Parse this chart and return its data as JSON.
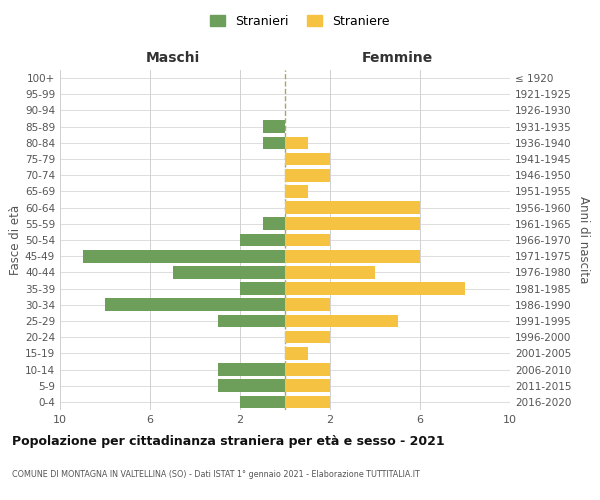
{
  "age_groups": [
    "0-4",
    "5-9",
    "10-14",
    "15-19",
    "20-24",
    "25-29",
    "30-34",
    "35-39",
    "40-44",
    "45-49",
    "50-54",
    "55-59",
    "60-64",
    "65-69",
    "70-74",
    "75-79",
    "80-84",
    "85-89",
    "90-94",
    "95-99",
    "100+"
  ],
  "birth_years": [
    "2016-2020",
    "2011-2015",
    "2006-2010",
    "2001-2005",
    "1996-2000",
    "1991-1995",
    "1986-1990",
    "1981-1985",
    "1976-1980",
    "1971-1975",
    "1966-1970",
    "1961-1965",
    "1956-1960",
    "1951-1955",
    "1946-1950",
    "1941-1945",
    "1936-1940",
    "1931-1935",
    "1926-1930",
    "1921-1925",
    "≤ 1920"
  ],
  "males": [
    2,
    3,
    3,
    0,
    0,
    3,
    8,
    2,
    5,
    9,
    2,
    1,
    0,
    0,
    0,
    0,
    1,
    1,
    0,
    0,
    0
  ],
  "females": [
    2,
    2,
    2,
    1,
    2,
    5,
    2,
    8,
    4,
    6,
    2,
    6,
    6,
    1,
    2,
    2,
    1,
    0,
    0,
    0,
    0
  ],
  "male_color": "#6d9f5a",
  "female_color": "#f5c242",
  "title": "Popolazione per cittadinanza straniera per età e sesso - 2021",
  "subtitle": "COMUNE DI MONTAGNA IN VALTELLINA (SO) - Dati ISTAT 1° gennaio 2021 - Elaborazione TUTTITALIA.IT",
  "xlabel_left": "Maschi",
  "xlabel_right": "Femmine",
  "ylabel_left": "Fasce di età",
  "ylabel_right": "Anni di nascita",
  "legend_male": "Stranieri",
  "legend_female": "Straniere",
  "xlim": 10,
  "bg_color": "#ffffff",
  "grid_color": "#d0d0d0"
}
